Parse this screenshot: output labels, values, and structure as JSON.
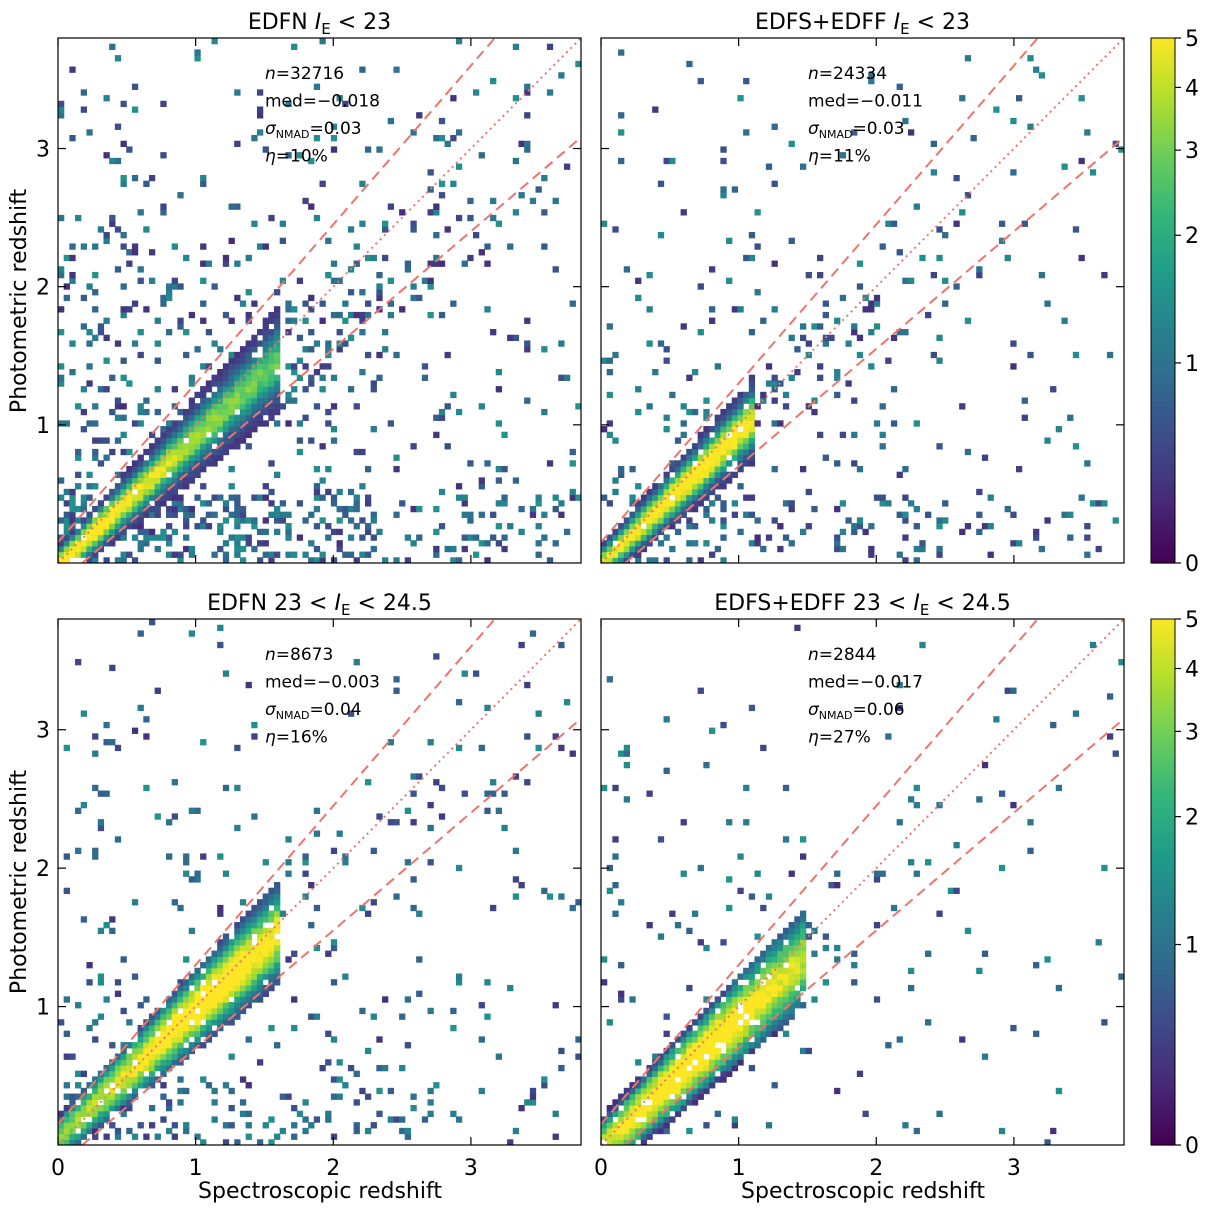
{
  "figure": {
    "ylabel": "Photometric redshift",
    "xlabel": "Spectroscopic redshift"
  },
  "colors": {
    "line": "#f0736b",
    "viridis": [
      "#440154",
      "#482878",
      "#3e4989",
      "#31688e",
      "#26828e",
      "#1f9e89",
      "#35b779",
      "#6ece58",
      "#b5de2b",
      "#fde725"
    ]
  },
  "colorbar": {
    "ticks": [
      "0",
      "1",
      "2",
      "3",
      "4",
      "5"
    ],
    "scale": "asinh",
    "range": [
      0,
      5
    ]
  },
  "chart_data": [
    {
      "type": "heatmap",
      "title_text": "EDFN",
      "title_math": "I_E < 23",
      "stats": {
        "n": "32716",
        "med": "−0.018",
        "sigma": "0.03",
        "eta": "10%"
      },
      "xlim": [
        0,
        3.8
      ],
      "ylim": [
        0,
        3.8
      ],
      "xticks": [
        "0",
        "1",
        "2",
        "3"
      ],
      "yticks": [
        "1",
        "2",
        "3"
      ],
      "outlier_lines": {
        "dz_threshold": 0.15,
        "one_to_one": true
      },
      "density": {
        "core_slope": 0.93,
        "core_intercept": -0.02,
        "core_width": 0.05,
        "xmax": 1.6,
        "peak_z": 0.1,
        "scatter_level": "high"
      }
    },
    {
      "type": "heatmap",
      "title_text": "EDFS+EDFF",
      "title_math": "I_E < 23",
      "stats": {
        "n": "24334",
        "med": "−0.011",
        "sigma": "0.03",
        "eta": "11%"
      },
      "xlim": [
        0,
        3.8
      ],
      "ylim": [
        0,
        3.8
      ],
      "xticks": [
        "0",
        "1",
        "2",
        "3"
      ],
      "yticks": [
        "1",
        "2",
        "3"
      ],
      "outlier_lines": {
        "dz_threshold": 0.15,
        "one_to_one": true
      },
      "density": {
        "core_slope": 0.95,
        "core_intercept": -0.01,
        "core_width": 0.05,
        "xmax": 1.1,
        "peak_z": 0.6,
        "scatter_level": "medium"
      }
    },
    {
      "type": "heatmap",
      "title_text": "EDFN",
      "title_math": "23 < I_E < 24.5",
      "stats": {
        "n": "8673",
        "med": "−0.003",
        "sigma": "0.04",
        "eta": "16%"
      },
      "xlim": [
        0,
        3.8
      ],
      "ylim": [
        0,
        3.8
      ],
      "xticks": [
        "0",
        "1",
        "2",
        "3"
      ],
      "yticks": [
        "1",
        "2",
        "3"
      ],
      "outlier_lines": {
        "dz_threshold": 0.15,
        "one_to_one": true
      },
      "density": {
        "core_slope": 0.93,
        "core_intercept": 0.05,
        "core_width": 0.08,
        "xmax": 1.6,
        "peak_z": 1.1,
        "scatter_level": "medium"
      }
    },
    {
      "type": "heatmap",
      "title_text": "EDFS+EDFF",
      "title_math": "23 < I_E < 24.5",
      "stats": {
        "n": "2844",
        "med": "−0.017",
        "sigma": "0.06",
        "eta": "27%"
      },
      "xlim": [
        0,
        3.8
      ],
      "ylim": [
        0,
        3.8
      ],
      "xticks": [
        "0",
        "1",
        "2",
        "3"
      ],
      "yticks": [
        "1",
        "2",
        "3"
      ],
      "outlier_lines": {
        "dz_threshold": 0.15,
        "one_to_one": true
      },
      "density": {
        "core_slope": 0.93,
        "core_intercept": -0.02,
        "core_width": 0.1,
        "xmax": 1.5,
        "peak_z": 0.7,
        "scatter_level": "sparse"
      }
    }
  ]
}
